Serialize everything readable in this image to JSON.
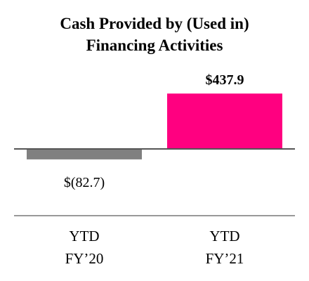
{
  "chart_data": {
    "type": "bar",
    "title": "Cash Provided by (Used in) Financing Activities",
    "categories": [
      "YTD FY’20",
      "YTD FY’21"
    ],
    "values": [
      -82.7,
      437.9
    ],
    "value_labels": [
      "$(82.7)",
      "$437.9"
    ],
    "colors": [
      "#808080",
      "#ff0080"
    ]
  }
}
